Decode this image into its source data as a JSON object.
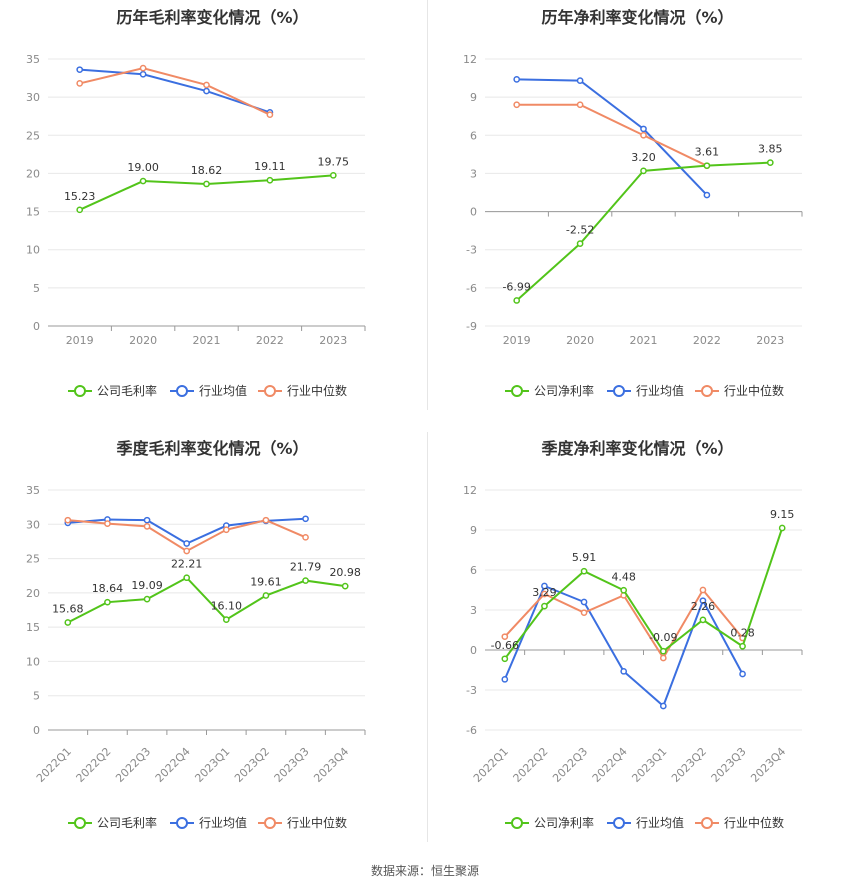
{
  "colors": {
    "company": "#52c41a",
    "industry_avg": "#3b6fe0",
    "industry_median": "#f08a65"
  },
  "source": "数据来源：恒生聚源",
  "chart_data": [
    {
      "type": "line",
      "title": "历年毛利率变化情况（%）",
      "categories": [
        "2019",
        "2020",
        "2021",
        "2022",
        "2023"
      ],
      "ylim": [
        0,
        35
      ],
      "yticks": [
        "0",
        "5",
        "10",
        "15",
        "20",
        "25",
        "30",
        "35"
      ],
      "series": [
        {
          "name": "公司毛利率",
          "values": [
            15.23,
            19.0,
            18.62,
            19.11,
            19.75
          ],
          "labels": [
            "15.23",
            "19.00",
            "18.62",
            "19.11",
            "19.75"
          ]
        },
        {
          "name": "行业均值",
          "values": [
            33.6,
            33.0,
            30.8,
            28.0,
            null
          ]
        },
        {
          "name": "行业中位数",
          "values": [
            31.8,
            33.8,
            31.6,
            27.7,
            null
          ]
        }
      ]
    },
    {
      "type": "line",
      "title": "历年净利率变化情况（%）",
      "categories": [
        "2019",
        "2020",
        "2021",
        "2022",
        "2023"
      ],
      "ylim": [
        -9,
        12
      ],
      "yticks": [
        "-9",
        "-6",
        "-3",
        "0",
        "3",
        "6",
        "9",
        "12"
      ],
      "series": [
        {
          "name": "公司净利率",
          "values": [
            -6.99,
            -2.52,
            3.2,
            3.61,
            3.85
          ],
          "labels": [
            "-6.99",
            "-2.52",
            "3.20",
            "3.61",
            "3.85"
          ]
        },
        {
          "name": "行业均值",
          "values": [
            10.4,
            10.3,
            6.5,
            1.3,
            null
          ]
        },
        {
          "name": "行业中位数",
          "values": [
            8.4,
            8.4,
            6.0,
            3.6,
            null
          ]
        }
      ]
    },
    {
      "type": "line",
      "title": "季度毛利率变化情况（%）",
      "categories": [
        "2022Q1",
        "2022Q2",
        "2022Q3",
        "2022Q4",
        "2023Q1",
        "2023Q2",
        "2023Q3",
        "2023Q4"
      ],
      "ylim": [
        0,
        35
      ],
      "yticks": [
        "0",
        "5",
        "10",
        "15",
        "20",
        "25",
        "30",
        "35"
      ],
      "series": [
        {
          "name": "公司毛利率",
          "values": [
            15.68,
            18.64,
            19.09,
            22.21,
            16.1,
            19.61,
            21.79,
            20.98
          ],
          "labels": [
            "15.68",
            "18.64",
            "19.09",
            "22.21",
            "16.10",
            "19.61",
            "21.79",
            "20.98"
          ]
        },
        {
          "name": "行业均值",
          "values": [
            30.2,
            30.7,
            30.6,
            27.2,
            29.8,
            30.5,
            30.8,
            null
          ]
        },
        {
          "name": "行业中位数",
          "values": [
            30.6,
            30.1,
            29.7,
            26.1,
            29.2,
            30.6,
            28.1,
            null
          ]
        }
      ]
    },
    {
      "type": "line",
      "title": "季度净利率变化情况（%）",
      "categories": [
        "2022Q1",
        "2022Q2",
        "2022Q3",
        "2022Q4",
        "2023Q1",
        "2023Q2",
        "2023Q3",
        "2023Q4"
      ],
      "ylim": [
        -6,
        12
      ],
      "yticks": [
        "-6",
        "-3",
        "0",
        "3",
        "6",
        "9",
        "12"
      ],
      "series": [
        {
          "name": "公司净利率",
          "values": [
            -0.66,
            3.29,
            5.91,
            4.48,
            -0.09,
            2.26,
            0.28,
            9.15
          ],
          "labels": [
            "-0.66",
            "3.29",
            "5.91",
            "4.48",
            "-0.09",
            "2.26",
            "0.28",
            "9.15"
          ]
        },
        {
          "name": "行业均值",
          "values": [
            -2.2,
            4.8,
            3.6,
            -1.6,
            -4.2,
            3.7,
            -1.8,
            null
          ]
        },
        {
          "name": "行业中位数",
          "values": [
            1.0,
            4.2,
            2.8,
            4.1,
            -0.6,
            4.5,
            0.9,
            null
          ]
        }
      ]
    }
  ]
}
